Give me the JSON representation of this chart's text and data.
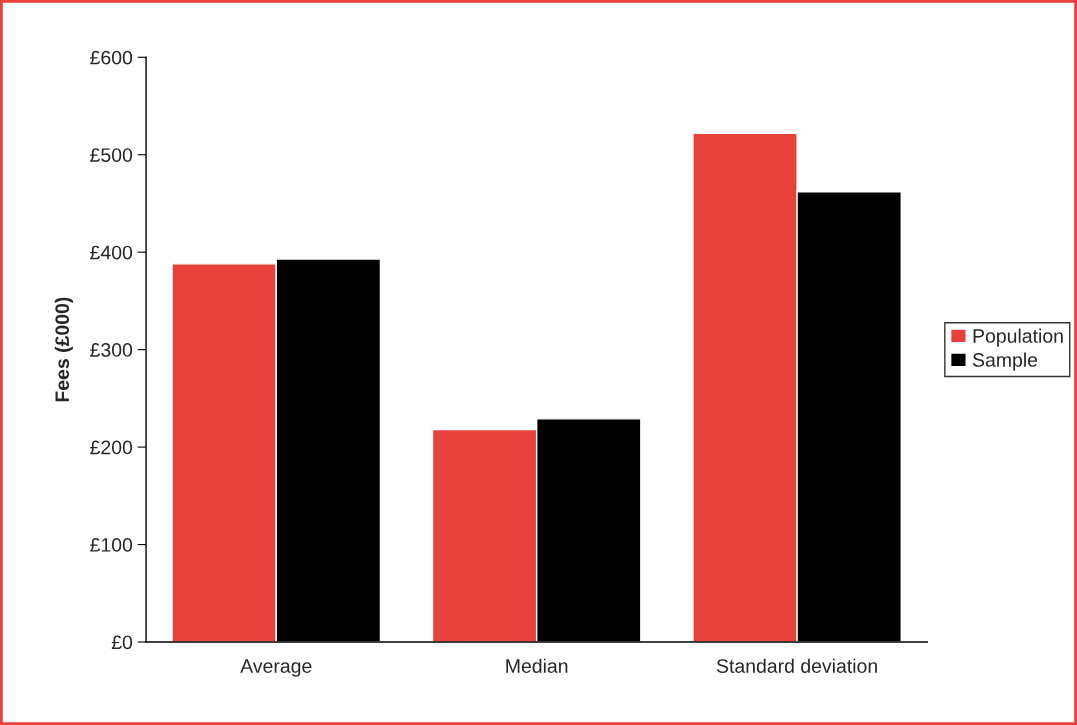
{
  "chart_data": {
    "type": "bar",
    "ylabel": "Fees (£000)",
    "categories": [
      "Average",
      "Median",
      "Standard deviation"
    ],
    "series": [
      {
        "name": "Population",
        "color": "#e8403a",
        "values": [
          388,
          218,
          522
        ]
      },
      {
        "name": "Sample",
        "color": "#000000",
        "values": [
          393,
          229,
          462
        ]
      }
    ],
    "ylim": [
      0,
      600
    ],
    "yticks": [
      {
        "value": 0,
        "label": "£0"
      },
      {
        "value": 100,
        "label": "£100"
      },
      {
        "value": 200,
        "label": "£200"
      },
      {
        "value": 300,
        "label": "£300"
      },
      {
        "value": 400,
        "label": "£400"
      },
      {
        "value": 500,
        "label": "£500"
      },
      {
        "value": 600,
        "label": "£600"
      }
    ],
    "grid": false,
    "legend": "right"
  }
}
